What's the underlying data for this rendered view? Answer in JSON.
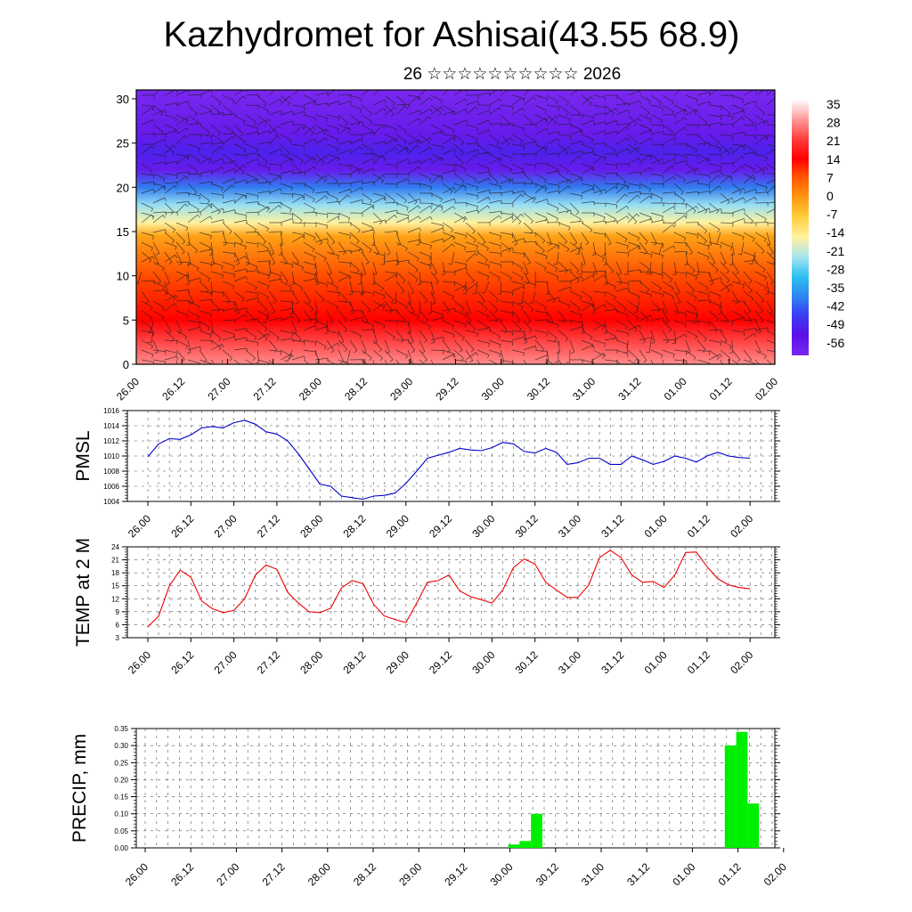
{
  "page": {
    "title": "Kazhydromet for Ashisai(43.55 68.9)",
    "subtitle": "26 ☆☆☆☆☆☆☆☆☆☆ 2026"
  },
  "chart_data": [
    {
      "type": "heatmap",
      "name": "vertical-profile",
      "title": "",
      "x_tick_labels": [
        "26.00",
        "26.12",
        "27.00",
        "27.12",
        "28.00",
        "28.12",
        "29.00",
        "29.12",
        "30.00",
        "30.12",
        "31.00",
        "31.12",
        "01.00",
        "01.12",
        "02.00"
      ],
      "y_ticks": [
        0,
        5,
        10,
        15,
        20,
        25,
        30
      ],
      "ylim": [
        0,
        31
      ],
      "colorbar_labels": [
        "35",
        "28",
        "21",
        "14",
        "7",
        "0",
        "-7",
        "-14",
        "-21",
        "-28",
        "-35",
        "-42",
        "-49",
        "-56"
      ],
      "colorbar_colors": [
        "#ffffff",
        "#ff9a9a",
        "#ff3c3c",
        "#ff0000",
        "#ff5a00",
        "#ff9a10",
        "#ffd040",
        "#fff2a0",
        "#a8e4f2",
        "#2cc0f0",
        "#2f86f0",
        "#3a3af2",
        "#5a10e8",
        "#7a28f0"
      ],
      "field": "temperature with wind barbs",
      "profile": [
        {
          "z": 0,
          "value": 27
        },
        {
          "z": 5,
          "value": 14
        },
        {
          "z": 10,
          "value": 8
        },
        {
          "z": 14.5,
          "value": -1
        },
        {
          "z": 16,
          "value": -14
        },
        {
          "z": 18,
          "value": -22
        },
        {
          "z": 20,
          "value": -36
        },
        {
          "z": 22,
          "value": -52
        },
        {
          "z": 24,
          "value": -46
        },
        {
          "z": 26,
          "value": -52
        },
        {
          "z": 31,
          "value": -60
        }
      ]
    },
    {
      "type": "line",
      "name": "pmsl",
      "ylabel": "PMSL",
      "ylim": [
        1004,
        1016
      ],
      "y_ticks": [
        1004,
        1006,
        1008,
        1010,
        1012,
        1014,
        1016
      ],
      "color": "#0000cc",
      "x_tick_labels": [
        "26.00",
        "26.12",
        "27.00",
        "27.12",
        "28.00",
        "28.12",
        "29.00",
        "29.12",
        "30.00",
        "30.12",
        "31.00",
        "31.12",
        "01.00",
        "01.12",
        "02.00"
      ],
      "values": [
        1009.9,
        1011.6,
        1012.3,
        1012.2,
        1012.8,
        1013.7,
        1013.9,
        1013.7,
        1014.4,
        1014.7,
        1014.2,
        1013.2,
        1012.9,
        1012.0,
        1010.3,
        1008.3,
        1006.3,
        1006.0,
        1004.7,
        1004.5,
        1004.3,
        1004.7,
        1004.8,
        1005.1,
        1006.4,
        1008.0,
        1009.7,
        1010.1,
        1010.5,
        1011.0,
        1010.8,
        1010.7,
        1011.1,
        1011.8,
        1011.6,
        1010.6,
        1010.4,
        1011.0,
        1010.5,
        1008.9,
        1009.1,
        1009.7,
        1009.7,
        1008.9,
        1008.9,
        1010.0,
        1009.5,
        1008.9,
        1009.3,
        1010.0,
        1009.7,
        1009.2,
        1010.0,
        1010.5,
        1010.0,
        1009.8,
        1009.7
      ]
    },
    {
      "type": "line",
      "name": "temp-2m",
      "ylabel": "TEMP at 2 M",
      "ylim": [
        3,
        24
      ],
      "y_ticks": [
        3,
        6,
        9,
        12,
        15,
        18,
        21,
        24
      ],
      "color": "#ee0000",
      "x_tick_labels": [
        "26.00",
        "26.12",
        "27.00",
        "27.12",
        "28.00",
        "28.12",
        "29.00",
        "29.12",
        "30.00",
        "30.12",
        "31.00",
        "31.12",
        "01.00",
        "01.12",
        "02.00"
      ],
      "values": [
        5.5,
        8.0,
        15.0,
        18.6,
        17.0,
        11.5,
        9.7,
        8.8,
        9.3,
        12.0,
        17.5,
        19.8,
        18.8,
        13.5,
        11.0,
        9.0,
        8.8,
        9.8,
        14.5,
        16.2,
        15.5,
        10.7,
        8.0,
        7.2,
        6.5,
        11.0,
        15.8,
        16.2,
        17.5,
        13.8,
        12.5,
        11.8,
        11.0,
        14.0,
        19.2,
        21.2,
        20.0,
        15.8,
        14.0,
        12.3,
        12.3,
        15.2,
        21.5,
        23.2,
        21.5,
        17.5,
        15.8,
        16.0,
        14.6,
        17.5,
        22.7,
        22.8,
        19.4,
        16.6,
        15.2,
        14.6,
        14.3
      ]
    },
    {
      "type": "bar",
      "name": "precip",
      "ylabel": "PRECIP, mm",
      "ylim": [
        0,
        0.35
      ],
      "y_tick_labels": [
        "0.00",
        "0.05",
        "0.10",
        "0.15",
        "0.20",
        "0.25",
        "0.30",
        "0.35"
      ],
      "color": "#00ee00",
      "x_tick_labels": [
        "26.00",
        "26.12",
        "27.00",
        "27.12",
        "28.00",
        "28.12",
        "29.00",
        "29.12",
        "30.00",
        "30.12",
        "31.00",
        "31.12",
        "01.00",
        "01.12",
        "02.00"
      ],
      "bars": [
        {
          "hour": 96,
          "value": 0.01
        },
        {
          "hour": 99,
          "value": 0.02
        },
        {
          "hour": 102,
          "value": 0.1
        },
        {
          "hour": 153,
          "value": 0.3
        },
        {
          "hour": 156,
          "value": 0.34
        },
        {
          "hour": 159,
          "value": 0.13
        }
      ]
    }
  ]
}
